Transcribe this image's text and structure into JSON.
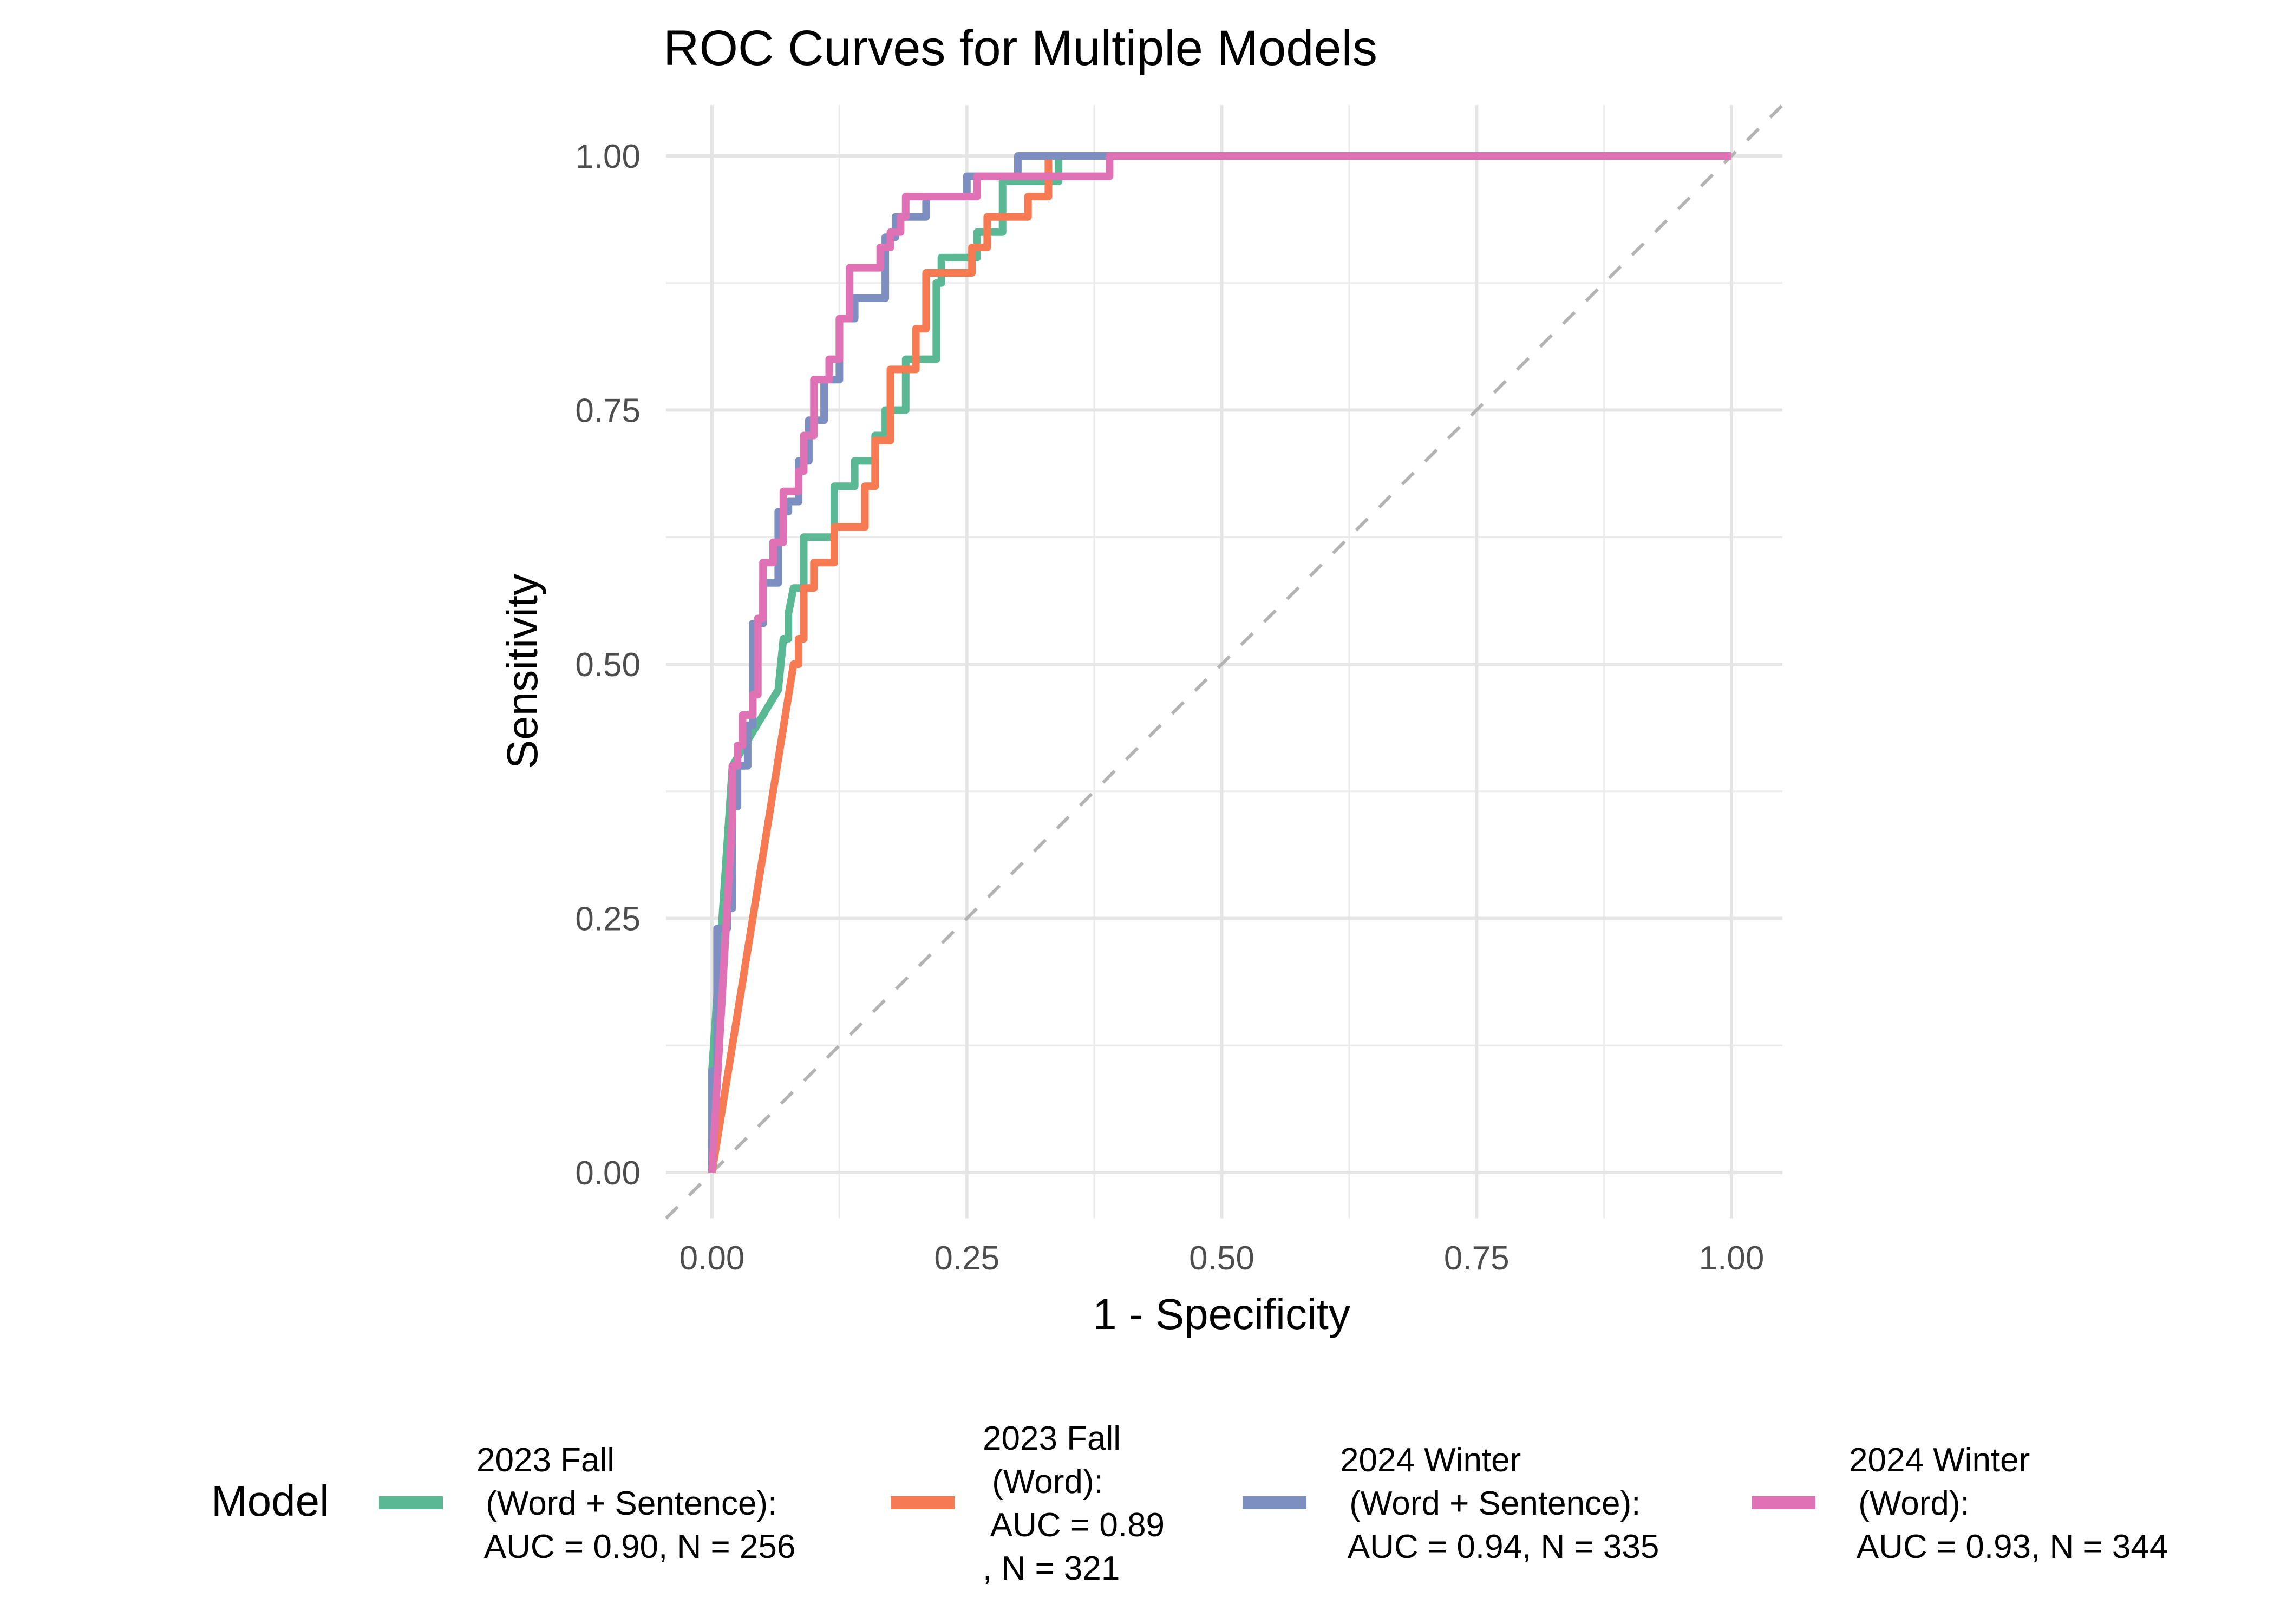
{
  "chart_data": {
    "type": "line",
    "title": "ROC Curves for Multiple Models",
    "xlabel": "1 - Specificity",
    "ylabel": "Sensitivity",
    "xlim": [
      -0.045,
      1.05
    ],
    "ylim": [
      -0.045,
      1.05
    ],
    "xticks": [
      0,
      0.25,
      0.5,
      0.75,
      1
    ],
    "xtick_labels": [
      "0.00",
      "0.25",
      "0.50",
      "0.75",
      "1.00"
    ],
    "yticks": [
      0,
      0.25,
      0.5,
      0.75,
      1
    ],
    "ytick_labels": [
      "0.00",
      "0.25",
      "0.50",
      "0.75",
      "1.00"
    ],
    "grid": true,
    "reference_line": {
      "style": "dashed",
      "color": "#b3b3b3",
      "from": [
        -0.045,
        -0.045
      ],
      "to": [
        1.05,
        1.05
      ]
    },
    "legend": {
      "title": "Model",
      "placement": "bottom",
      "entries": [
        {
          "lines": [
            "2023 Fall",
            " (Word +  Sentence):",
            " AUC = 0.90, N = 256"
          ]
        },
        {
          "lines": [
            "2023 Fall",
            " (Word):",
            " AUC = 0.89",
            ", N = 321"
          ]
        },
        {
          "lines": [
            "2024 Winter",
            " (Word +  Sentence):",
            " AUC = 0.94, N = 335"
          ]
        },
        {
          "lines": [
            "2024 Winter",
            " (Word):",
            " AUC = 0.93, N = 344"
          ]
        }
      ]
    },
    "series": [
      {
        "name": "2023 Fall (Word + Sentence): AUC = 0.90, N = 256",
        "color": "#5ab994",
        "auc": 0.9,
        "n": 256,
        "points": [
          [
            0,
            0
          ],
          [
            0,
            0.1
          ],
          [
            0.02,
            0.4
          ],
          [
            0.065,
            0.475
          ],
          [
            0.07,
            0.525
          ],
          [
            0.075,
            0.525
          ],
          [
            0.075,
            0.55
          ],
          [
            0.08,
            0.575
          ],
          [
            0.09,
            0.575
          ],
          [
            0.09,
            0.625
          ],
          [
            0.12,
            0.625
          ],
          [
            0.12,
            0.675
          ],
          [
            0.14,
            0.675
          ],
          [
            0.14,
            0.7
          ],
          [
            0.16,
            0.7
          ],
          [
            0.16,
            0.725
          ],
          [
            0.17,
            0.725
          ],
          [
            0.17,
            0.75
          ],
          [
            0.19,
            0.75
          ],
          [
            0.19,
            0.8
          ],
          [
            0.22,
            0.8
          ],
          [
            0.22,
            0.875
          ],
          [
            0.225,
            0.875
          ],
          [
            0.225,
            0.9
          ],
          [
            0.26,
            0.9
          ],
          [
            0.26,
            0.925
          ],
          [
            0.285,
            0.925
          ],
          [
            0.285,
            0.975
          ],
          [
            0.34,
            0.975
          ],
          [
            0.34,
            1.0
          ],
          [
            1,
            1
          ]
        ]
      },
      {
        "name": "2023 Fall (Word): AUC = 0.89, N = 321",
        "color": "#f77b52",
        "auc": 0.89,
        "n": 321,
        "points": [
          [
            0,
            0
          ],
          [
            0.08,
            0.5
          ],
          [
            0.085,
            0.5
          ],
          [
            0.085,
            0.525
          ],
          [
            0.09,
            0.525
          ],
          [
            0.09,
            0.575
          ],
          [
            0.1,
            0.575
          ],
          [
            0.1,
            0.6
          ],
          [
            0.12,
            0.6
          ],
          [
            0.12,
            0.635
          ],
          [
            0.15,
            0.635
          ],
          [
            0.15,
            0.675
          ],
          [
            0.16,
            0.675
          ],
          [
            0.16,
            0.72
          ],
          [
            0.175,
            0.72
          ],
          [
            0.175,
            0.79
          ],
          [
            0.2,
            0.79
          ],
          [
            0.2,
            0.83
          ],
          [
            0.21,
            0.83
          ],
          [
            0.21,
            0.885
          ],
          [
            0.255,
            0.885
          ],
          [
            0.255,
            0.91
          ],
          [
            0.27,
            0.91
          ],
          [
            0.27,
            0.94
          ],
          [
            0.31,
            0.94
          ],
          [
            0.31,
            0.96
          ],
          [
            0.33,
            0.96
          ],
          [
            0.33,
            1.0
          ],
          [
            1,
            1
          ]
        ]
      },
      {
        "name": "2024 Winter (Word + Sentence): AUC = 0.94, N = 335",
        "color": "#7d8fc0",
        "auc": 0.94,
        "n": 335,
        "points": [
          [
            0,
            0
          ],
          [
            0,
            0.1
          ],
          [
            0.005,
            0.1
          ],
          [
            0.005,
            0.24
          ],
          [
            0.015,
            0.24
          ],
          [
            0.015,
            0.26
          ],
          [
            0.02,
            0.26
          ],
          [
            0.02,
            0.36
          ],
          [
            0.025,
            0.36
          ],
          [
            0.025,
            0.4
          ],
          [
            0.035,
            0.4
          ],
          [
            0.035,
            0.44
          ],
          [
            0.04,
            0.44
          ],
          [
            0.04,
            0.54
          ],
          [
            0.05,
            0.54
          ],
          [
            0.05,
            0.58
          ],
          [
            0.065,
            0.58
          ],
          [
            0.065,
            0.65
          ],
          [
            0.075,
            0.65
          ],
          [
            0.075,
            0.66
          ],
          [
            0.085,
            0.66
          ],
          [
            0.085,
            0.7
          ],
          [
            0.095,
            0.7
          ],
          [
            0.095,
            0.74
          ],
          [
            0.11,
            0.74
          ],
          [
            0.11,
            0.78
          ],
          [
            0.125,
            0.78
          ],
          [
            0.125,
            0.84
          ],
          [
            0.14,
            0.84
          ],
          [
            0.14,
            0.86
          ],
          [
            0.17,
            0.86
          ],
          [
            0.17,
            0.92
          ],
          [
            0.18,
            0.92
          ],
          [
            0.18,
            0.94
          ],
          [
            0.21,
            0.94
          ],
          [
            0.21,
            0.96
          ],
          [
            0.25,
            0.96
          ],
          [
            0.25,
            0.98
          ],
          [
            0.3,
            0.98
          ],
          [
            0.3,
            1.0
          ],
          [
            1,
            1
          ]
        ]
      },
      {
        "name": "2024 Winter (Word): AUC = 0.93, N = 344",
        "color": "#df72b4",
        "auc": 0.93,
        "n": 344,
        "points": [
          [
            0,
            0
          ],
          [
            0.02,
            0.35
          ],
          [
            0.02,
            0.4
          ],
          [
            0.025,
            0.4
          ],
          [
            0.025,
            0.42
          ],
          [
            0.03,
            0.42
          ],
          [
            0.03,
            0.45
          ],
          [
            0.04,
            0.45
          ],
          [
            0.04,
            0.47
          ],
          [
            0.045,
            0.47
          ],
          [
            0.045,
            0.545
          ],
          [
            0.05,
            0.545
          ],
          [
            0.05,
            0.6
          ],
          [
            0.06,
            0.6
          ],
          [
            0.06,
            0.62
          ],
          [
            0.07,
            0.62
          ],
          [
            0.07,
            0.67
          ],
          [
            0.085,
            0.67
          ],
          [
            0.085,
            0.69
          ],
          [
            0.09,
            0.69
          ],
          [
            0.09,
            0.725
          ],
          [
            0.1,
            0.725
          ],
          [
            0.1,
            0.78
          ],
          [
            0.115,
            0.78
          ],
          [
            0.115,
            0.8
          ],
          [
            0.125,
            0.8
          ],
          [
            0.125,
            0.84
          ],
          [
            0.135,
            0.84
          ],
          [
            0.135,
            0.89
          ],
          [
            0.165,
            0.89
          ],
          [
            0.165,
            0.91
          ],
          [
            0.175,
            0.91
          ],
          [
            0.175,
            0.925
          ],
          [
            0.185,
            0.925
          ],
          [
            0.185,
            0.94
          ],
          [
            0.19,
            0.94
          ],
          [
            0.19,
            0.96
          ],
          [
            0.26,
            0.96
          ],
          [
            0.26,
            0.98
          ],
          [
            0.39,
            0.98
          ],
          [
            0.39,
            1.0
          ],
          [
            1,
            1
          ]
        ]
      }
    ]
  }
}
